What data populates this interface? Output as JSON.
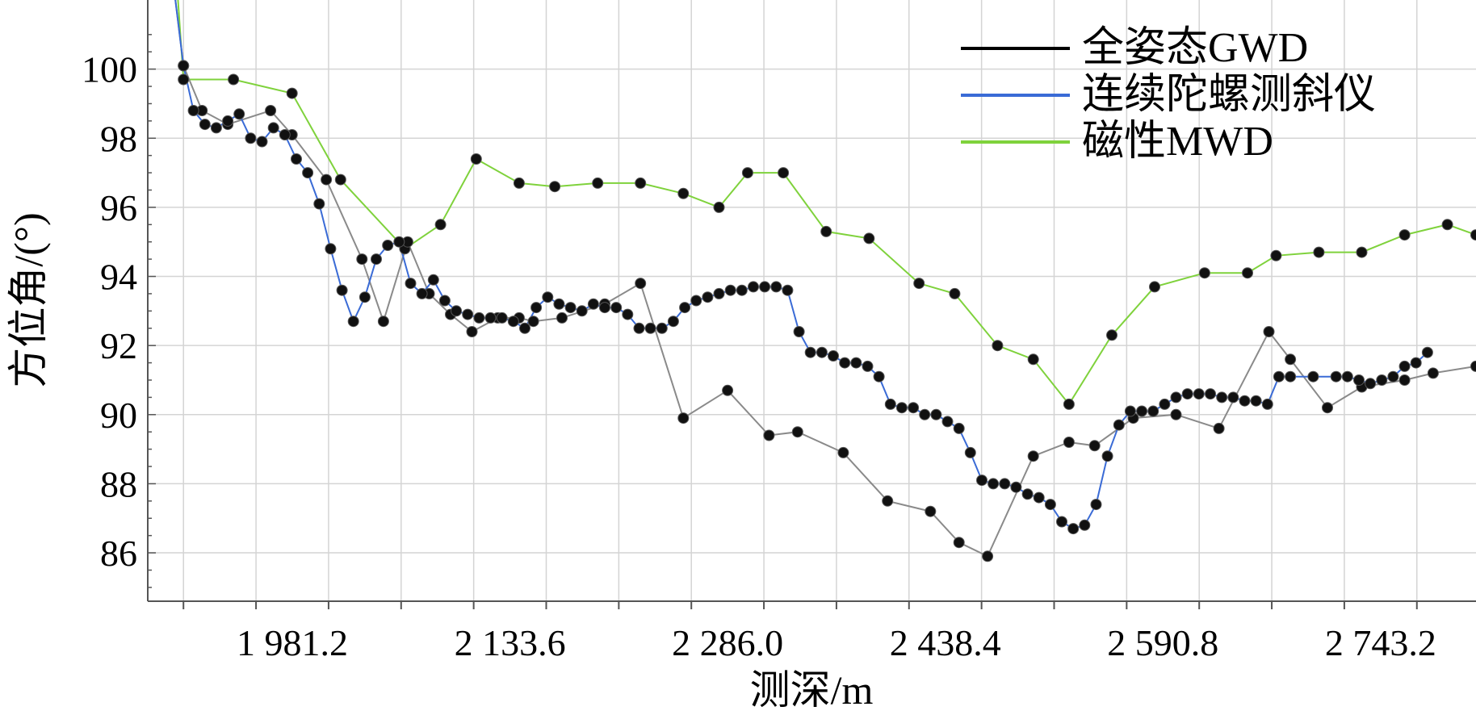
{
  "chart_data": {
    "type": "line",
    "title": "",
    "xlabel": "测深/m",
    "ylabel": "方位角/(°)",
    "xlim": [
      1880,
      2810
    ],
    "ylim": [
      84.6,
      102
    ],
    "x_ticks": [
      1981.2,
      2133.6,
      2286.0,
      2438.4,
      2590.8,
      2743.2
    ],
    "x_tick_labels": [
      "1 981.2",
      "2 133.6",
      "2 286.0",
      "2 438.4",
      "2 590.8",
      "2 743.2"
    ],
    "y_ticks": [
      86,
      88,
      90,
      92,
      94,
      96,
      98,
      100
    ],
    "y_tick_labels": [
      "86",
      "88",
      "90",
      "92",
      "94",
      "96",
      "98",
      "100"
    ],
    "grid": true,
    "legend_position": "top-right",
    "series": [
      {
        "name": "全姿态GWD",
        "color": "#000000",
        "markers": true,
        "x": [
          1905,
          1918,
          1936,
          1966,
          1981,
          2005,
          2030,
          2045,
          2062,
          2077,
          2092,
          2107,
          2125,
          2140,
          2150,
          2170,
          2200,
          2225,
          2255,
          2286,
          2315,
          2335,
          2367,
          2398,
          2428,
          2448,
          2468,
          2500,
          2525,
          2543,
          2570,
          2600,
          2630,
          2665,
          2680,
          2706,
          2730,
          2760,
          2780,
          2810
        ],
        "y": [
          100.1,
          98.8,
          98.4,
          98.8,
          98.1,
          96.8,
          94.5,
          92.7,
          95.0,
          93.5,
          92.9,
          92.4,
          92.8,
          92.8,
          92.7,
          92.8,
          93.2,
          93.8,
          89.9,
          90.7,
          89.4,
          89.5,
          88.9,
          87.5,
          87.2,
          86.3,
          85.9,
          88.8,
          89.2,
          89.1,
          89.9,
          90.0,
          89.6,
          92.4,
          91.6,
          90.2,
          90.8,
          91.0,
          91.2,
          91.4
        ]
      },
      {
        "name": "连续陀螺测斜仪",
        "color": "#3a6bd6",
        "markers": true,
        "x": [
          1905,
          1912,
          1920,
          1928,
          1936,
          1944,
          1952,
          1960,
          1968,
          1976,
          1984,
          1992,
          2000,
          2008,
          2016,
          2024,
          2032,
          2040,
          2048,
          2056,
          2064,
          2072,
          2080,
          2088,
          2096,
          2104,
          2112,
          2120,
          2128,
          2136,
          2144,
          2152,
          2160,
          2168,
          2176,
          2184,
          2192,
          2200,
          2208,
          2216,
          2224,
          2232,
          2240,
          2248,
          2256,
          2264,
          2272,
          2280,
          2288,
          2296,
          2304,
          2312,
          2320,
          2328,
          2336,
          2344,
          2352,
          2360,
          2368,
          2376,
          2384,
          2392,
          2400,
          2408,
          2416,
          2424,
          2432,
          2440,
          2448,
          2456,
          2464,
          2472,
          2480,
          2488,
          2496,
          2504,
          2512,
          2520,
          2528,
          2536,
          2544,
          2552,
          2560,
          2568,
          2576,
          2584,
          2592,
          2600,
          2608,
          2616,
          2624,
          2632,
          2640,
          2648,
          2656,
          2664,
          2672,
          2680
        ],
        "y": [
          100.1,
          98.8,
          98.4,
          98.3,
          98.5,
          98.7,
          98.0,
          97.9,
          98.3,
          98.1,
          97.4,
          97.0,
          96.1,
          94.8,
          93.6,
          92.7,
          93.4,
          94.5,
          94.9,
          95.0,
          93.8,
          93.5,
          93.9,
          93.3,
          93.0,
          92.9,
          92.8,
          92.8,
          92.8,
          92.7,
          92.5,
          93.1,
          93.4,
          93.2,
          93.1,
          93.0,
          93.2,
          93.1,
          93.1,
          92.9,
          92.5,
          92.5,
          92.5,
          92.7,
          93.1,
          93.3,
          93.4,
          93.5,
          93.6,
          93.6,
          93.7,
          93.7,
          93.7,
          93.6,
          92.4,
          91.8,
          91.8,
          91.7,
          91.5,
          91.5,
          91.4,
          91.1,
          90.3,
          90.2,
          90.2,
          90.0,
          90.0,
          89.8,
          89.6,
          88.9,
          88.1,
          88.0,
          88.0,
          87.9,
          87.7,
          87.6,
          87.4,
          86.9,
          86.7,
          86.8,
          87.4,
          88.8,
          89.7,
          90.1,
          90.1,
          90.1,
          90.3,
          90.5,
          90.6,
          90.6,
          90.6,
          90.5,
          90.5,
          90.4,
          90.4,
          90.3,
          91.1,
          91.1
        ],
        "tail_x": [
          2696,
          2712,
          2720,
          2728,
          2736,
          2744,
          2752,
          2760,
          2768,
          2776
        ],
        "tail_y": [
          91.1,
          91.1,
          91.1,
          91.0,
          90.9,
          91.0,
          91.1,
          91.4,
          91.5,
          91.8
        ]
      },
      {
        "name": "磁性MWD",
        "color": "#7fd23c",
        "markers": true,
        "x": [
          1905,
          1940,
          1981,
          2015,
          2060,
          2085,
          2110,
          2140,
          2165,
          2195,
          2225,
          2255,
          2280,
          2300,
          2325,
          2355,
          2385,
          2420,
          2445,
          2475,
          2500,
          2525,
          2555,
          2585,
          2620,
          2650,
          2670,
          2700,
          2730,
          2760,
          2790,
          2810
        ],
        "y": [
          99.7,
          99.7,
          99.3,
          96.8,
          94.8,
          95.5,
          97.4,
          96.7,
          96.6,
          96.7,
          96.7,
          96.4,
          96.0,
          97.0,
          97.0,
          95.3,
          95.1,
          93.8,
          93.5,
          92.0,
          91.6,
          90.3,
          92.3,
          93.7,
          94.1,
          94.1,
          94.6,
          94.7,
          94.7,
          95.2,
          95.5,
          95.2
        ]
      }
    ]
  }
}
